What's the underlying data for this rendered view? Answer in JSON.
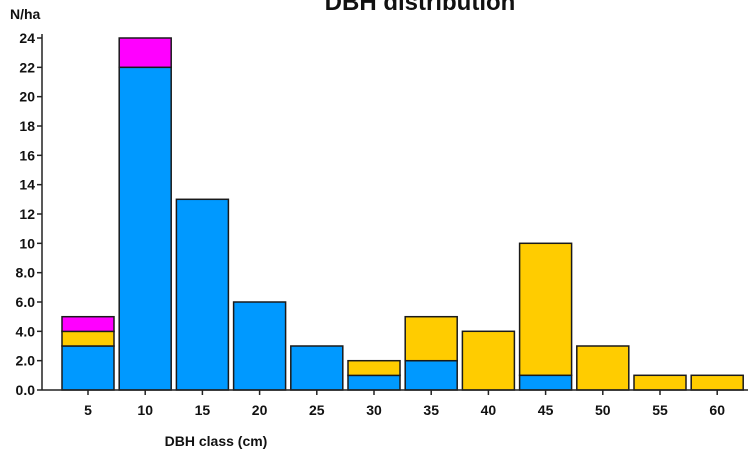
{
  "chart_data": {
    "type": "bar",
    "stacked": true,
    "title": "DBH distribution",
    "xlabel": "DBH class (cm)",
    "ylabel": "N/ha",
    "categories": [
      "5",
      "10",
      "15",
      "20",
      "25",
      "30",
      "35",
      "40",
      "45",
      "50",
      "55",
      "60"
    ],
    "ylim": [
      0,
      24
    ],
    "yticks": [
      "0.0",
      "2.0",
      "4.0",
      "6.0",
      "8.0",
      "10",
      "12",
      "14",
      "16",
      "18",
      "20",
      "22",
      "24"
    ],
    "grid": false,
    "series": [
      {
        "color": "#0099ff",
        "values": [
          3,
          22,
          13,
          6,
          3,
          1,
          2,
          0,
          1,
          0,
          0,
          0
        ]
      },
      {
        "color": "#ffcc00",
        "values": [
          1,
          0,
          0,
          0,
          0,
          1,
          3,
          4,
          9,
          3,
          1,
          1
        ]
      },
      {
        "color": "#ff00ff",
        "values": [
          1,
          2,
          0,
          0,
          0,
          0,
          0,
          0,
          0,
          0,
          0,
          0
        ]
      }
    ]
  }
}
